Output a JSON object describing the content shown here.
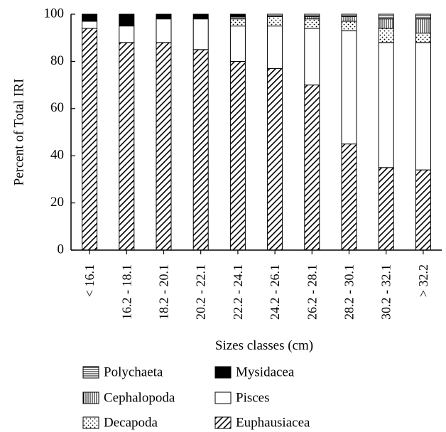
{
  "chart_data": {
    "type": "bar",
    "stacked": true,
    "title": "",
    "xlabel": "Sizes classes (cm)",
    "ylabel": "Percent of Total IRI",
    "ylim": [
      0,
      100
    ],
    "yticks": [
      "0",
      "20",
      "40",
      "60",
      "80",
      "100"
    ],
    "grid": false,
    "legend_position": "bottom",
    "categories": [
      "< 16.1",
      "16.2 - 18.1",
      "18.2 - 20.1",
      "20.2 - 22.1",
      "22.2 - 24.1",
      "24.2 - 26.1",
      "26.2 - 28.1",
      "28.2 - 30.1",
      "30.2 - 32.1",
      "> 32.2"
    ],
    "series": [
      {
        "name": "Euphausiacea",
        "pattern": "diagonal-hatch",
        "color": "#000000",
        "values": [
          94,
          88,
          88,
          85,
          80,
          77,
          70,
          45,
          35,
          34
        ]
      },
      {
        "name": "Pisces",
        "pattern": "blank",
        "color": "#ffffff",
        "values": [
          3,
          7,
          10,
          13,
          15,
          18,
          24,
          48,
          53,
          54
        ]
      },
      {
        "name": "Decapoda",
        "pattern": "dotted",
        "color": "#000000",
        "values": [
          0,
          0,
          0,
          0,
          3,
          4,
          4,
          4,
          6,
          4
        ]
      },
      {
        "name": "Cephalopoda",
        "pattern": "vertical-lines",
        "color": "#000000",
        "values": [
          0,
          0,
          0,
          0,
          0,
          0,
          1,
          2,
          4,
          6
        ]
      },
      {
        "name": "Polychaeta",
        "pattern": "horizontal-lines",
        "color": "#000000",
        "values": [
          0,
          0,
          0,
          0,
          1,
          1,
          1,
          1,
          2,
          2
        ]
      },
      {
        "name": "Mysidacea",
        "pattern": "solid",
        "color": "#000000",
        "values": [
          3,
          5,
          2,
          2,
          1,
          0,
          0,
          0,
          0,
          0
        ]
      }
    ],
    "legend_order": [
      "Polychaeta",
      "Mysidacea",
      "Cephalopoda",
      "Pisces",
      "Decapoda",
      "Euphausiacea"
    ]
  }
}
